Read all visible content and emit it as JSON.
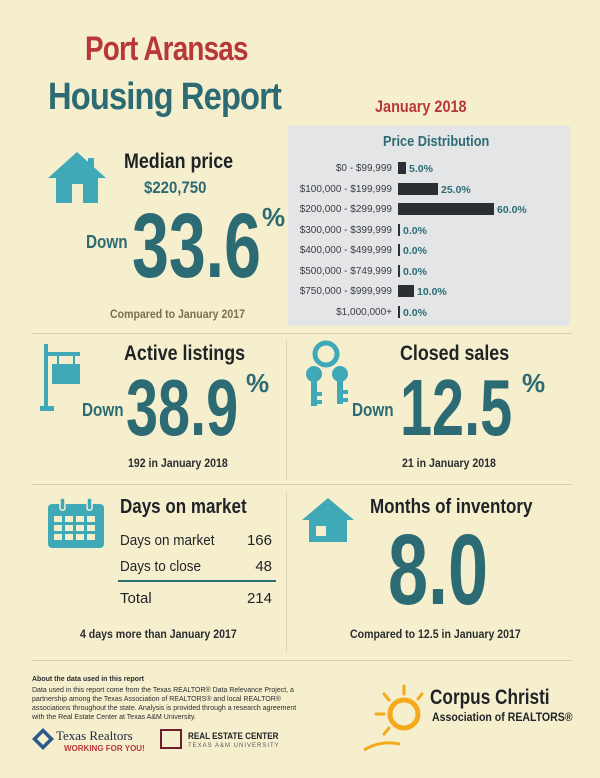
{
  "header": {
    "city": "Port Aransas",
    "report": "Housing Report",
    "date": "January 2018"
  },
  "median_price": {
    "label": "Median price",
    "value": "$220,750",
    "direction": "Down",
    "change": "33.6",
    "pct": "%",
    "note": "Compared to January 2017",
    "icon": "house-icon"
  },
  "price_distribution": {
    "title": "Price Distribution",
    "rows": [
      {
        "range": "$0 - $99,999",
        "value": "5.0%"
      },
      {
        "range": "$100,000 - $199,999",
        "value": "25.0%"
      },
      {
        "range": "$200,000 - $299,999",
        "value": "60.0%"
      },
      {
        "range": "$300,000 - $399,999",
        "value": "0.0%"
      },
      {
        "range": "$400,000 - $499,999",
        "value": "0.0%"
      },
      {
        "range": "$500,000 - $749,999",
        "value": "0.0%"
      },
      {
        "range": "$750,000 - $999,999",
        "value": "10.0%"
      },
      {
        "range": "$1,000,000+",
        "value": "0.0%"
      }
    ]
  },
  "chart_data": {
    "type": "bar",
    "title": "Price Distribution",
    "categories": [
      "$0 - $99,999",
      "$100,000 - $199,999",
      "$200,000 - $299,999",
      "$300,000 - $399,999",
      "$400,000 - $499,999",
      "$500,000 - $749,999",
      "$750,000 - $999,999",
      "$1,000,000+"
    ],
    "values": [
      5.0,
      25.0,
      60.0,
      0.0,
      0.0,
      0.0,
      10.0,
      0.0
    ],
    "orientation": "horizontal",
    "bar_color": "#2b2e33",
    "label_color": "#2c6b74"
  },
  "active_listings": {
    "label": "Active listings",
    "direction": "Down",
    "change": "38.9",
    "pct": "%",
    "note": "192 in January 2018",
    "icon": "for-sale-sign-icon"
  },
  "closed_sales": {
    "label": "Closed sales",
    "direction": "Down",
    "change": "12.5",
    "pct": "%",
    "note": "21 in January 2018",
    "icon": "keys-icon"
  },
  "days_on_market": {
    "label": "Days on market",
    "rows": [
      {
        "name": "Days on market",
        "value": "166"
      },
      {
        "name": "Days to close",
        "value": "48"
      }
    ],
    "total_label": "Total",
    "total_value": "214",
    "note": "4 days more than January 2017",
    "icon": "calendar-icon"
  },
  "inventory": {
    "label": "Months of inventory",
    "value": "8.0",
    "note": "Compared to 12.5 in January 2017",
    "icon": "house-icon"
  },
  "footer": {
    "heading": "About the data used in this report",
    "text": "Data used in this report come from the Texas REALTOR® Data Relevance Project, a partnership among the Texas Association of REALTORS® and local REALTOR® associations throughout the state. Analysis is provided through a research agreement with the Real Estate Center at Texas A&M University.",
    "texas_realtors_line1": "Texas Realtors",
    "texas_realtors_line2": "WORKING FOR YOU!",
    "tamu_line1": "REAL ESTATE CENTER",
    "tamu_line2": "TEXAS A&M UNIVERSITY",
    "corpus_line1": "Corpus Christi",
    "corpus_line2": "Association of REALTORS®"
  },
  "colors": {
    "background": "#f6efcd",
    "teal": "#2c6b74",
    "red": "#b8383a",
    "icon_teal": "#3fa9b8",
    "dark": "#2b2e33"
  }
}
